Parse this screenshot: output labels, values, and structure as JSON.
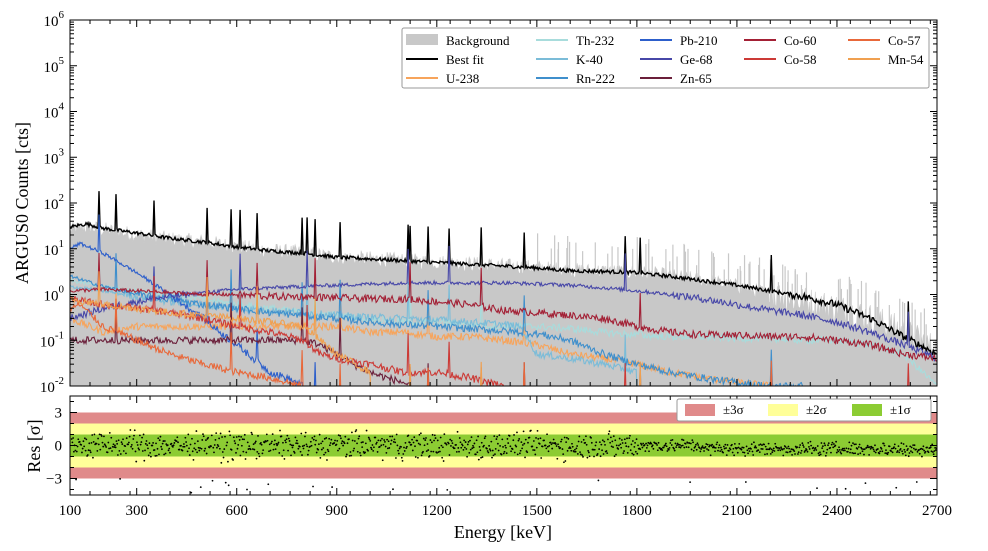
{
  "chart_data": [
    {
      "type": "line",
      "title": "",
      "xlabel": "Energy [keV]",
      "ylabel": "ARGUS0 Counts [cts]",
      "xlim": [
        100,
        2700
      ],
      "ylim": [
        0.01,
        1000000
      ],
      "yscale": "log",
      "y_tick_labels": [
        "10^-2",
        "10^-1",
        "10^0",
        "10^1",
        "10^2",
        "10^3",
        "10^4",
        "10^5",
        "10^6"
      ],
      "legend_position": "top-right",
      "series": [
        {
          "name": "Background",
          "color": "#c8c8c8",
          "style": "fill",
          "x": [
            100,
            150,
            200,
            300,
            400,
            500,
            600,
            700,
            800,
            900,
            1000,
            1100,
            1200,
            1300,
            1400,
            1500,
            1600,
            1700,
            1800,
            1900,
            2000,
            2100,
            2200,
            2300,
            2400,
            2500,
            2600,
            2700
          ],
          "y": [
            25,
            30,
            26,
            20,
            16,
            14,
            11,
            9,
            8,
            6.5,
            6,
            5.5,
            5,
            4.6,
            4.2,
            3.8,
            3.3,
            3.2,
            3.0,
            2.5,
            2.0,
            1.5,
            1.0,
            0.7,
            0.5,
            0.3,
            0.15,
            0.06
          ]
        },
        {
          "name": "Best fit",
          "color": "#000000",
          "x": [
            100,
            150,
            200,
            300,
            400,
            500,
            600,
            700,
            800,
            900,
            1000,
            1100,
            1200,
            1300,
            1400,
            1500,
            1600,
            1700,
            1800,
            1900,
            2000,
            2100,
            2200,
            2300,
            2400,
            2500,
            2600,
            2700
          ],
          "y": [
            30,
            35,
            28,
            22,
            17,
            14,
            11,
            9,
            8,
            6.5,
            6,
            5.5,
            5,
            4.6,
            4.2,
            3.8,
            3.3,
            3.2,
            3.0,
            2.5,
            2.0,
            1.6,
            1.2,
            0.9,
            0.6,
            0.3,
            0.12,
            0.05
          ]
        },
        {
          "name": "U-238",
          "color": "#f7a45b",
          "x": [
            100,
            200,
            300,
            400,
            500,
            600,
            700,
            800,
            900,
            1000,
            1100,
            1200,
            1300,
            1400,
            1500,
            1600,
            1700,
            1800,
            1900,
            2000,
            2100,
            2200
          ],
          "y": [
            0.3,
            0.15,
            0.2,
            0.2,
            0.2,
            0.2,
            0.2,
            0.2,
            0.2,
            0.15,
            0.15,
            0.12,
            0.12,
            0.1,
            0.08,
            0.05,
            0.04,
            0.03,
            0.02,
            0.015,
            0.012,
            0.01
          ]
        },
        {
          "name": "Th-232",
          "color": "#a8dcdc",
          "x": [
            100,
            200,
            300,
            400,
            500,
            600,
            700,
            800,
            900,
            1000,
            1100,
            1200,
            1300,
            1400,
            1500,
            1600,
            1700,
            1800,
            1900,
            2000,
            2100,
            2200,
            2300,
            2400,
            2500,
            2600,
            2700
          ],
          "y": [
            2.0,
            1.5,
            1.2,
            1.0,
            0.8,
            0.6,
            0.5,
            0.4,
            0.35,
            0.3,
            0.25,
            0.25,
            0.22,
            0.2,
            0.2,
            0.18,
            0.15,
            0.13,
            0.12,
            0.12,
            0.11,
            0.11,
            0.1,
            0.1,
            0.08,
            0.05,
            0.01
          ]
        },
        {
          "name": "K-40",
          "color": "#7bbcd8",
          "x": [
            100,
            200,
            300,
            400,
            500,
            600,
            700,
            800,
            900,
            1000,
            1100,
            1200,
            1300,
            1400,
            1450,
            1500,
            1600,
            1700,
            1800
          ],
          "y": [
            1.5,
            1.2,
            0.9,
            0.7,
            0.6,
            0.5,
            0.45,
            0.4,
            0.35,
            0.32,
            0.3,
            0.28,
            0.25,
            0.22,
            0.2,
            0.05,
            0.04,
            0.03,
            0.02
          ]
        },
        {
          "name": "Rn-222",
          "color": "#3f8fcc",
          "x": [
            100,
            200,
            300,
            400,
            500,
            600,
            700,
            800,
            900,
            1000,
            1100,
            1200,
            1300,
            1400,
            1500,
            1600,
            1700,
            1800,
            1900,
            2000,
            2100,
            2200,
            2300
          ],
          "y": [
            2.5,
            1.5,
            1.0,
            0.8,
            0.6,
            0.5,
            0.4,
            0.35,
            0.3,
            0.25,
            0.22,
            0.2,
            0.18,
            0.16,
            0.14,
            0.1,
            0.05,
            0.03,
            0.02,
            0.015,
            0.012,
            0.01,
            0.01
          ]
        },
        {
          "name": "Pb-210",
          "color": "#2d5fcb",
          "x": [
            100,
            130,
            200,
            300,
            400,
            500,
            550,
            600,
            650,
            700,
            750,
            800
          ],
          "y": [
            10,
            13,
            8,
            3,
            1,
            0.3,
            0.15,
            0.08,
            0.04,
            0.02,
            0.015,
            0.01
          ]
        },
        {
          "name": "Ge-68",
          "color": "#4747a8",
          "x": [
            100,
            200,
            300,
            400,
            500,
            600,
            700,
            800,
            900,
            1000,
            1100,
            1200,
            1300,
            1400,
            1500,
            1600,
            1700,
            1800,
            1900,
            2000,
            2100,
            2200,
            2300,
            2400,
            2500,
            2600,
            2700
          ],
          "y": [
            0.3,
            0.5,
            0.7,
            0.9,
            1.1,
            1.3,
            1.4,
            1.5,
            1.6,
            1.7,
            1.8,
            1.8,
            1.8,
            1.8,
            1.7,
            1.6,
            1.4,
            1.2,
            1.0,
            0.8,
            0.6,
            0.45,
            0.35,
            0.25,
            0.15,
            0.08,
            0.04
          ]
        },
        {
          "name": "Zn-65",
          "color": "#6b1f3a",
          "x": [
            100,
            200,
            300,
            400,
            500,
            600,
            700,
            800,
            850,
            900,
            950,
            1000,
            1050,
            1100,
            1120
          ],
          "y": [
            0.1,
            0.1,
            0.1,
            0.1,
            0.1,
            0.1,
            0.1,
            0.1,
            0.08,
            0.05,
            0.03,
            0.02,
            0.015,
            0.012,
            0.01
          ]
        },
        {
          "name": "Co-60",
          "color": "#a32035",
          "x": [
            100,
            200,
            300,
            400,
            500,
            600,
            700,
            800,
            900,
            1000,
            1100,
            1200,
            1300,
            1400,
            1500,
            1600,
            1700,
            1800,
            1900,
            2000,
            2100,
            2200,
            2300,
            2400,
            2500,
            2600,
            2700
          ],
          "y": [
            1.2,
            1.3,
            1.2,
            1.1,
            1.0,
            1.0,
            0.9,
            0.9,
            0.85,
            0.8,
            0.8,
            0.7,
            0.6,
            0.45,
            0.4,
            0.35,
            0.3,
            0.2,
            0.15,
            0.13,
            0.13,
            0.12,
            0.12,
            0.1,
            0.08,
            0.05,
            0.04
          ]
        },
        {
          "name": "Co-58",
          "color": "#cc3a36",
          "x": [
            100,
            200,
            300,
            400,
            500,
            600,
            700,
            800,
            850,
            900,
            1000,
            1100,
            1200,
            1300,
            1400
          ],
          "y": [
            0.8,
            0.6,
            0.5,
            0.4,
            0.3,
            0.2,
            0.15,
            0.1,
            0.05,
            0.04,
            0.03,
            0.02,
            0.02,
            0.015,
            0.01
          ]
        },
        {
          "name": "Co-57",
          "color": "#e8683a",
          "x": [
            100,
            130,
            200,
            300,
            400,
            500,
            600,
            700,
            800
          ],
          "y": [
            0.5,
            0.6,
            0.2,
            0.1,
            0.05,
            0.03,
            0.02,
            0.015,
            0.01
          ]
        },
        {
          "name": "Mn-54",
          "color": "#f0a050",
          "x": [
            100,
            200,
            300,
            400,
            500,
            600,
            700,
            800,
            850,
            900,
            1000
          ],
          "y": [
            0.8,
            0.6,
            0.5,
            0.4,
            0.35,
            0.3,
            0.25,
            0.2,
            0.1,
            0.05,
            0.02
          ]
        }
      ],
      "peaks_keV": [
        186,
        239,
        352,
        511,
        583,
        609,
        662,
        795,
        811,
        835,
        911,
        1115,
        1120,
        1173,
        1238,
        1333,
        1461,
        1764,
        1811,
        2204,
        2614
      ]
    },
    {
      "type": "scatter",
      "title": "",
      "xlabel": "Energy [keV]",
      "ylabel": "Res [σ]",
      "xlim": [
        100,
        2700
      ],
      "ylim": [
        -4.5,
        4.5
      ],
      "x_ticks": [
        100,
        300,
        600,
        900,
        1200,
        1500,
        1800,
        2100,
        2400,
        2700
      ],
      "y_ticks": [
        -3,
        0,
        3
      ],
      "bands": [
        {
          "name": "±3σ",
          "range": [
            -3,
            3
          ],
          "color": "#e08a8a"
        },
        {
          "name": "±2σ",
          "range": [
            -2,
            2
          ],
          "color": "#ffff99"
        },
        {
          "name": "±1σ",
          "range": [
            -1,
            1
          ],
          "color": "#8ccc33"
        }
      ],
      "legend_position": "top-right"
    }
  ]
}
